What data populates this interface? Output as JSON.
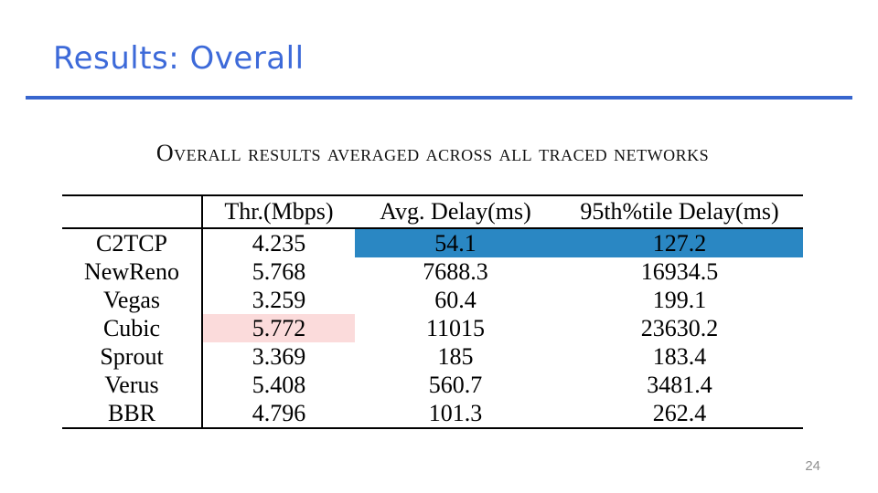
{
  "slide": {
    "title": "Results: Overall",
    "page_number": "24",
    "title_color": "#3d6ad9",
    "rule_color": "#3866ce"
  },
  "table": {
    "caption": "Overall results averaged across all traced networks",
    "columns": [
      "",
      "Thr.(Mbps)",
      "Avg. Delay(ms)",
      "95th%tile Delay(ms)"
    ],
    "rows": [
      {
        "name": "C2TCP",
        "thr": "4.235",
        "avg_delay": "54.1",
        "p95_delay": "127.2",
        "highlight": "delays-blue"
      },
      {
        "name": "NewReno",
        "thr": "5.768",
        "avg_delay": "7688.3",
        "p95_delay": "16934.5",
        "highlight": ""
      },
      {
        "name": "Vegas",
        "thr": "3.259",
        "avg_delay": "60.4",
        "p95_delay": "199.1",
        "highlight": ""
      },
      {
        "name": "Cubic",
        "thr": "5.772",
        "avg_delay": "11015",
        "p95_delay": "23630.2",
        "highlight": "thr-pink"
      },
      {
        "name": "Sprout",
        "thr": "3.369",
        "avg_delay": "185",
        "p95_delay": "183.4",
        "highlight": ""
      },
      {
        "name": "Verus",
        "thr": "5.408",
        "avg_delay": "560.7",
        "p95_delay": "3481.4",
        "highlight": ""
      },
      {
        "name": "BBR",
        "thr": "4.796",
        "avg_delay": "101.3",
        "p95_delay": "262.4",
        "highlight": ""
      }
    ],
    "highlight_colors": {
      "delay_highlight": "#2a87c3",
      "throughput_highlight": "#fbdbdb"
    }
  }
}
